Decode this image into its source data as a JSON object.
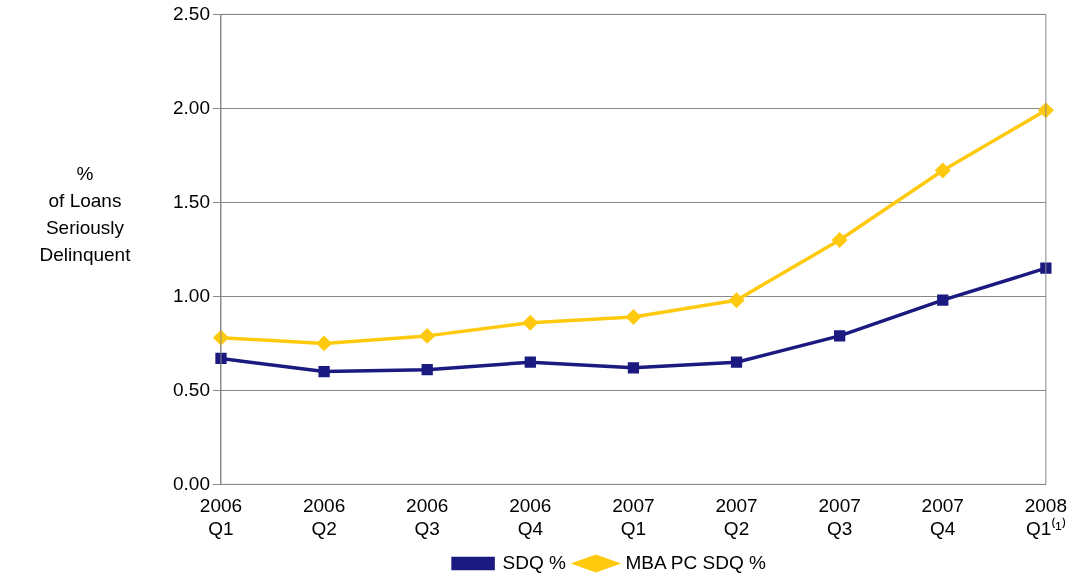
{
  "chart_data": {
    "type": "line",
    "ylabel": "%\nof Loans\nSeriously\nDelinquent",
    "categories": [
      "2006\nQ1",
      "2006\nQ2",
      "2006\nQ3",
      "2006\nQ4",
      "2007\nQ1",
      "2007\nQ2",
      "2007\nQ3",
      "2007\nQ4",
      "2008\nQ1⁽¹⁾"
    ],
    "series": [
      {
        "name": "SDQ %",
        "color": "#1a1a80",
        "values": [
          0.67,
          0.6,
          0.61,
          0.65,
          0.62,
          0.65,
          0.79,
          0.98,
          1.15
        ]
      },
      {
        "name": "MBA PC SDQ %",
        "color": "#ffc90e",
        "marker": "diamond",
        "values": [
          0.78,
          0.75,
          0.79,
          0.86,
          0.89,
          0.98,
          1.3,
          1.67,
          1.99
        ]
      }
    ],
    "ylim": [
      0,
      2.5
    ],
    "yticks": [
      {
        "value": 0,
        "label": "0.00"
      },
      {
        "value": 0.5,
        "label": "0.50"
      },
      {
        "value": 1,
        "label": "1.00"
      },
      {
        "value": 1.5,
        "label": "1.50"
      },
      {
        "value": 2,
        "label": "2.00"
      },
      {
        "value": 2.5,
        "label": "2.50"
      }
    ],
    "grid": "y",
    "legend": "bottom",
    "marker": "square",
    "line_style": "solid"
  }
}
